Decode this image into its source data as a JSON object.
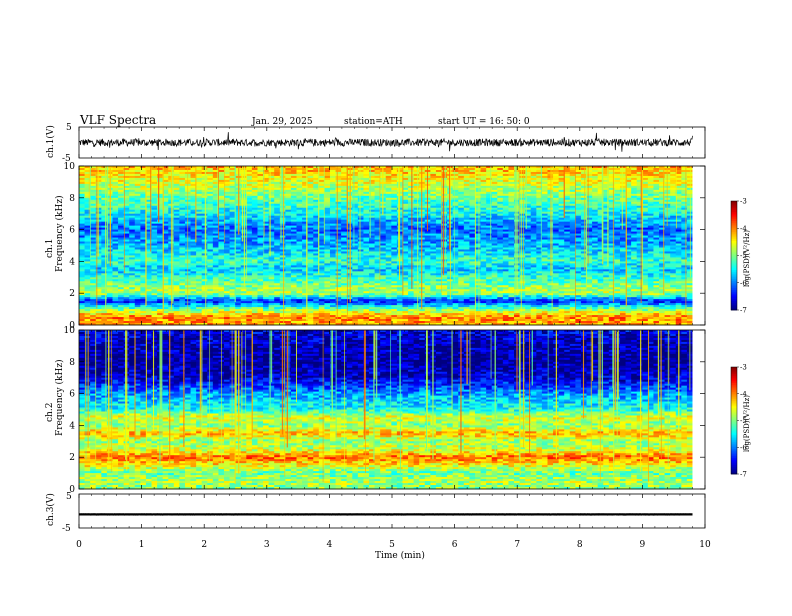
{
  "header": {
    "title": "VLF  Spectra",
    "date": "Jan. 29, 2025",
    "station": "station=ATH",
    "start": "start  UT  =   16: 50: 0"
  },
  "chart_data": [
    {
      "type": "line",
      "name": "ch1-waveform",
      "ylabel": "ch.1(V)",
      "ylim": [
        -5,
        5
      ],
      "yticks": [
        "5",
        "-5"
      ],
      "xlim": [
        0,
        10
      ],
      "description_values": {
        "mean": 0,
        "amplitude": 1.2
      }
    },
    {
      "type": "heatmap",
      "name": "ch1-spectrogram",
      "ylabel_top": "ch.1",
      "ylabel": "Frequency  (kHz)",
      "ylim": [
        0,
        10
      ],
      "yticks": [
        "0",
        "2",
        "4",
        "6",
        "8",
        "10"
      ],
      "xlim": [
        0,
        10
      ],
      "x_end": 9.8,
      "colorbar": {
        "label": "log(PSD)(V²/Hz)",
        "range": [
          -7,
          -3
        ],
        "ticks": [
          "-3",
          "-4",
          "-5",
          "-6",
          "-7"
        ]
      },
      "profile": [
        {
          "f": 0.0,
          "v": -4.2
        },
        {
          "f": 0.5,
          "v": -4.0
        },
        {
          "f": 1.0,
          "v": -5.0
        },
        {
          "f": 1.5,
          "v": -6.4
        },
        {
          "f": 2.0,
          "v": -4.8
        },
        {
          "f": 2.5,
          "v": -5.0
        },
        {
          "f": 3.0,
          "v": -5.3
        },
        {
          "f": 3.5,
          "v": -5.7
        },
        {
          "f": 4.0,
          "v": -5.3
        },
        {
          "f": 5.0,
          "v": -5.8
        },
        {
          "f": 6.0,
          "v": -6.1
        },
        {
          "f": 7.0,
          "v": -5.5
        },
        {
          "f": 8.0,
          "v": -5.1
        },
        {
          "f": 9.0,
          "v": -4.6
        },
        {
          "f": 10.0,
          "v": -4.2
        }
      ]
    },
    {
      "type": "heatmap",
      "name": "ch2-spectrogram",
      "ylabel_top": "ch.2",
      "ylabel": "Frequency  (kHz)",
      "ylim": [
        0,
        10
      ],
      "yticks": [
        "0",
        "2",
        "4",
        "6",
        "8",
        "10"
      ],
      "xlim": [
        0,
        10
      ],
      "x_end": 9.8,
      "colorbar": {
        "label": "log(PSD)(V²/Hz)",
        "range": [
          -7,
          -3
        ],
        "ticks": [
          "-3",
          "-4",
          "-5",
          "-6",
          "-7"
        ]
      },
      "profile": [
        {
          "f": 0.0,
          "v": -5.0
        },
        {
          "f": 0.5,
          "v": -4.8
        },
        {
          "f": 1.0,
          "v": -5.1
        },
        {
          "f": 2.0,
          "v": -3.9
        },
        {
          "f": 2.5,
          "v": -4.7
        },
        {
          "f": 3.0,
          "v": -4.9
        },
        {
          "f": 3.5,
          "v": -4.2
        },
        {
          "f": 4.0,
          "v": -5.0
        },
        {
          "f": 4.5,
          "v": -4.6
        },
        {
          "f": 5.0,
          "v": -5.4
        },
        {
          "f": 6.0,
          "v": -5.9
        },
        {
          "f": 7.0,
          "v": -6.7
        },
        {
          "f": 8.0,
          "v": -6.9
        },
        {
          "f": 9.0,
          "v": -6.8
        },
        {
          "f": 10.0,
          "v": -6.6
        }
      ]
    },
    {
      "type": "line",
      "name": "ch3-waveform",
      "ylabel": "ch.3(V)",
      "ylim": [
        -5,
        5
      ],
      "yticks": [
        "5",
        "-5"
      ],
      "xlim": [
        0,
        10
      ],
      "xlabel": "Time  (min)",
      "xticks": [
        "0",
        "1",
        "2",
        "3",
        "4",
        "5",
        "6",
        "7",
        "8",
        "9",
        "10"
      ],
      "description_values": {
        "mean": -1,
        "amplitude": 0.1
      }
    }
  ]
}
